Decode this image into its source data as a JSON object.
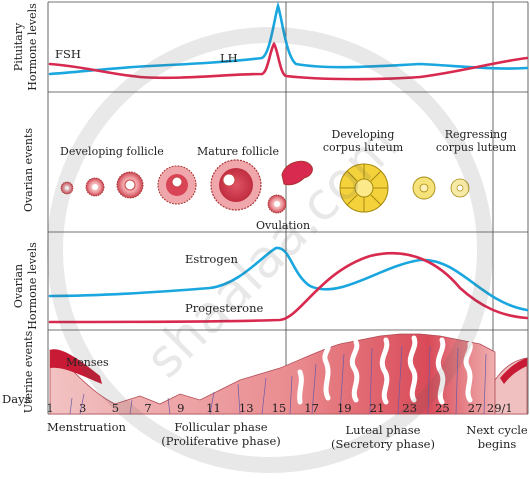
{
  "panels": {
    "pituitary": "Pituitary\nHormone levels",
    "ovarian_events": "Ovarian events",
    "ovarian_hormone": "Ovarian\nHormone levels",
    "uterine": "Uterine events"
  },
  "curves": {
    "fsh": "FSH",
    "lh": "LH",
    "estrogen": "Estrogen",
    "progesterone": "Progesterone"
  },
  "ovarian_labels": {
    "developing_follicle": "Developing follicle",
    "mature_follicle": "Mature follicle",
    "ovulation": "Ovulation",
    "developing_corpus_luteum_1": "Developing",
    "developing_corpus_luteum_2": "corpus luteum",
    "regressing_corpus_luteum_1": "Regressing",
    "regressing_corpus_luteum_2": "corpus luteum"
  },
  "uterine_labels": {
    "menses": "Menses"
  },
  "axis": {
    "title": "Days",
    "ticks": [
      "1",
      "3",
      "5",
      "7",
      "9",
      "11",
      "13",
      "15",
      "17",
      "19",
      "21",
      "23",
      "25",
      "27",
      "29/1"
    ]
  },
  "phases": {
    "menstruation": "Menstruation",
    "follicular_1": "Follicular phase",
    "follicular_2": "(Proliferative phase)",
    "luteal_1": "Luteal phase",
    "luteal_2": "(Secretory phase)",
    "next_1": "Next cycle",
    "next_2": "begins"
  },
  "watermark": "shaalaa.com",
  "colors": {
    "blue": "#1aa6de",
    "red": "#d8294f",
    "follicle": "#c9434f",
    "corpus": "#f3d23c",
    "tissue": "#e3717a",
    "line": "#555555"
  }
}
